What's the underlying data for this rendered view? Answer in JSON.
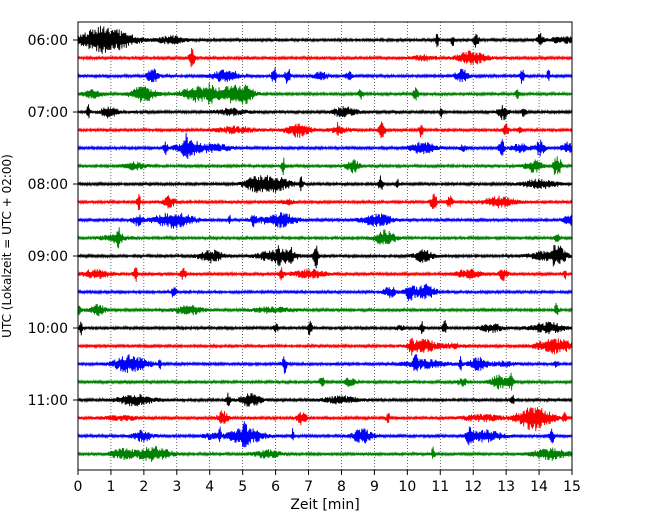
{
  "chart_data": {
    "type": "line",
    "title": "",
    "xlabel": "Zeit  [min]",
    "ylabel": "UTC (Lokalzeit = UTC + 02:00)",
    "xlim": [
      0,
      15
    ],
    "x_ticks": [
      "0",
      "1",
      "2",
      "3",
      "4",
      "5",
      "6",
      "7",
      "8",
      "9",
      "10",
      "11",
      "12",
      "13",
      "14",
      "15"
    ],
    "y_ticks": [
      "06:00",
      "07:00",
      "08:00",
      "09:00",
      "10:00",
      "11:00"
    ],
    "grid": "vertical dotted",
    "trace_interval_minutes": 15,
    "trace_colors": [
      "#000000",
      "#ff0000",
      "#0000ff",
      "#008000"
    ],
    "traces": [
      {
        "start": "06:00",
        "color": "#000000"
      },
      {
        "start": "06:15",
        "color": "#ff0000"
      },
      {
        "start": "06:30",
        "color": "#0000ff"
      },
      {
        "start": "06:45",
        "color": "#008000"
      },
      {
        "start": "07:00",
        "color": "#000000"
      },
      {
        "start": "07:15",
        "color": "#ff0000"
      },
      {
        "start": "07:30",
        "color": "#0000ff"
      },
      {
        "start": "07:45",
        "color": "#008000"
      },
      {
        "start": "08:00",
        "color": "#000000"
      },
      {
        "start": "08:15",
        "color": "#ff0000"
      },
      {
        "start": "08:30",
        "color": "#0000ff"
      },
      {
        "start": "08:45",
        "color": "#008000"
      },
      {
        "start": "09:00",
        "color": "#000000"
      },
      {
        "start": "09:15",
        "color": "#ff0000"
      },
      {
        "start": "09:30",
        "color": "#0000ff"
      },
      {
        "start": "09:45",
        "color": "#008000"
      },
      {
        "start": "10:00",
        "color": "#000000"
      },
      {
        "start": "10:15",
        "color": "#ff0000"
      },
      {
        "start": "10:30",
        "color": "#0000ff"
      },
      {
        "start": "10:45",
        "color": "#008000"
      },
      {
        "start": "11:00",
        "color": "#000000"
      },
      {
        "start": "11:15",
        "color": "#ff0000"
      },
      {
        "start": "11:30",
        "color": "#0000ff"
      },
      {
        "start": "11:45",
        "color": "#008000"
      }
    ]
  }
}
